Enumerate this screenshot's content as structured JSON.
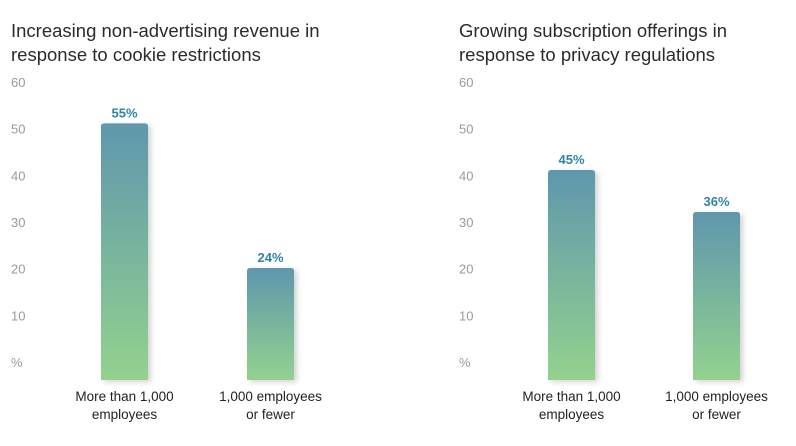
{
  "colors": {
    "bar_top": "#5f97ad",
    "bar_bottom": "#93d28e",
    "data_label": "#2e86a3",
    "tick": "#9a9a9a",
    "title": "#2b2b2b"
  },
  "chart_data": [
    {
      "type": "bar",
      "title_lines": [
        "Increasing non-advertising revenue in",
        "response to cookie restrictions"
      ],
      "categories": [
        [
          "More than 1,000",
          "employees"
        ],
        [
          "1,000 employees",
          "or fewer"
        ]
      ],
      "values": [
        55,
        24
      ],
      "data_labels": [
        "55%",
        "24%"
      ],
      "ylim": [
        0,
        60
      ],
      "yticks": [
        "%",
        "10",
        "20",
        "30",
        "40",
        "50",
        "60"
      ],
      "grid": false
    },
    {
      "type": "bar",
      "title_lines": [
        "Growing subscription offerings in",
        "response to privacy regulations"
      ],
      "categories": [
        [
          "More than 1,000",
          "employees"
        ],
        [
          "1,000 employees",
          "or fewer"
        ]
      ],
      "values": [
        45,
        36
      ],
      "data_labels": [
        "45%",
        "36%"
      ],
      "ylim": [
        0,
        60
      ],
      "yticks": [
        "%",
        "10",
        "20",
        "30",
        "40",
        "50",
        "60"
      ],
      "grid": false
    }
  ]
}
